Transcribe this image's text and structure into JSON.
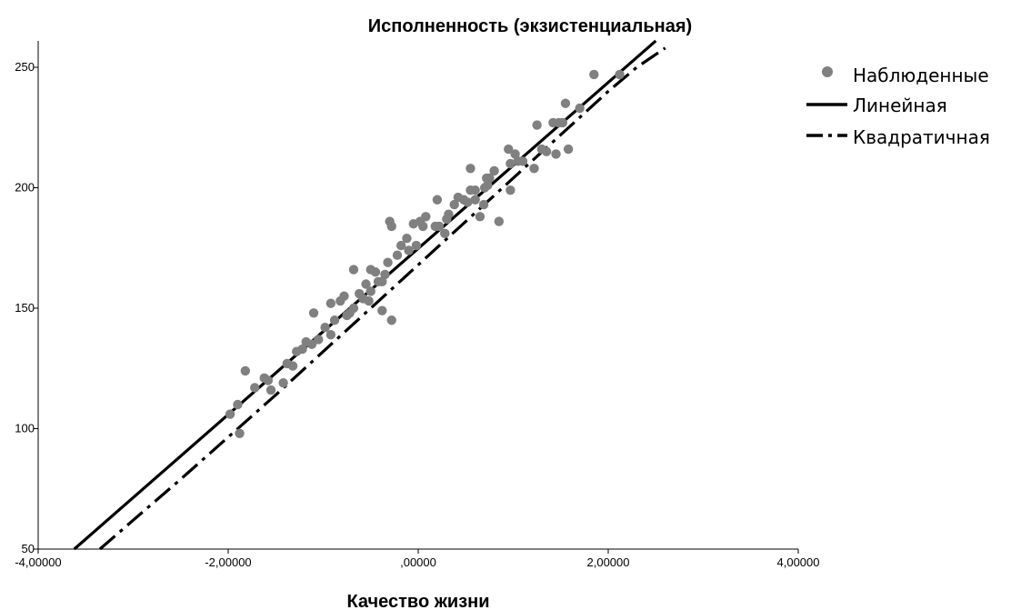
{
  "chart_data": {
    "type": "scatter",
    "title": "Исполненность (экзистенциальная)",
    "xlabel": "Качество жизни",
    "ylabel": "",
    "xlim": [
      -4,
      4
    ],
    "ylim": [
      50,
      260
    ],
    "x_ticks": [
      {
        "value": -4,
        "label": "-4,00000"
      },
      {
        "value": -2,
        "label": "-2,00000"
      },
      {
        "value": 0,
        "label": ",00000"
      },
      {
        "value": 2,
        "label": "2,00000"
      },
      {
        "value": 4,
        "label": "4,00000"
      }
    ],
    "y_ticks": [
      {
        "value": 50,
        "label": "50"
      },
      {
        "value": 100,
        "label": "100"
      },
      {
        "value": 150,
        "label": "150"
      },
      {
        "value": 200,
        "label": "200"
      },
      {
        "value": 250,
        "label": "250"
      }
    ],
    "grid": false,
    "legend": {
      "placement": "top-right",
      "entries": [
        {
          "label": "Наблюденные",
          "style": "dot"
        },
        {
          "label": "Линейная",
          "style": "solid"
        },
        {
          "label": "Квадратичная",
          "style": "dash-dot"
        }
      ]
    },
    "colors": {
      "points": "#808080",
      "lines": "#000000"
    },
    "series": [
      {
        "name": "Наблюденные",
        "kind": "points",
        "points": [
          [
            2.12,
            247
          ],
          [
            1.85,
            247
          ],
          [
            1.55,
            235
          ],
          [
            1.48,
            227
          ],
          [
            1.42,
            227
          ],
          [
            1.52,
            227
          ],
          [
            1.7,
            233
          ],
          [
            1.58,
            216
          ],
          [
            1.45,
            214
          ],
          [
            1.35,
            215
          ],
          [
            1.3,
            216
          ],
          [
            1.25,
            226
          ],
          [
            1.1,
            211
          ],
          [
            1.05,
            211
          ],
          [
            1.02,
            214
          ],
          [
            0.97,
            210
          ],
          [
            0.95,
            216
          ],
          [
            0.97,
            199
          ],
          [
            0.8,
            207
          ],
          [
            0.75,
            204
          ],
          [
            0.73,
            201
          ],
          [
            0.7,
            200
          ],
          [
            0.72,
            204
          ],
          [
            0.69,
            193
          ],
          [
            0.65,
            188
          ],
          [
            0.6,
            199
          ],
          [
            0.6,
            195
          ],
          [
            0.55,
            199
          ],
          [
            0.52,
            194
          ],
          [
            0.55,
            208
          ],
          [
            0.48,
            195
          ],
          [
            0.42,
            196
          ],
          [
            0.38,
            193
          ],
          [
            0.32,
            189
          ],
          [
            0.3,
            187
          ],
          [
            0.28,
            181
          ],
          [
            0.2,
            195
          ],
          [
            0.18,
            184
          ],
          [
            0.08,
            188
          ],
          [
            0.05,
            184
          ],
          [
            0.02,
            186
          ],
          [
            -0.02,
            176
          ],
          [
            -0.05,
            185
          ],
          [
            -0.12,
            179
          ],
          [
            -0.18,
            176
          ],
          [
            -0.22,
            172
          ],
          [
            -0.28,
            184
          ],
          [
            -0.3,
            186
          ],
          [
            -0.32,
            169
          ],
          [
            -0.35,
            164
          ],
          [
            -0.38,
            161
          ],
          [
            -0.42,
            161
          ],
          [
            -0.45,
            165
          ],
          [
            -0.5,
            166
          ],
          [
            -0.55,
            160
          ],
          [
            -0.5,
            157
          ],
          [
            -0.52,
            153
          ],
          [
            -0.58,
            154
          ],
          [
            -0.62,
            156
          ],
          [
            -0.68,
            150
          ],
          [
            -0.72,
            148
          ],
          [
            -0.75,
            147
          ],
          [
            -0.78,
            155
          ],
          [
            -0.82,
            153
          ],
          [
            -0.88,
            145
          ],
          [
            -0.92,
            152
          ],
          [
            -0.92,
            139
          ],
          [
            -0.98,
            142
          ],
          [
            -1.05,
            137
          ],
          [
            -1.12,
            135
          ],
          [
            -1.18,
            136
          ],
          [
            -1.22,
            133
          ],
          [
            -1.28,
            132
          ],
          [
            -1.32,
            126
          ],
          [
            -1.38,
            127
          ],
          [
            -1.42,
            119
          ],
          [
            -1.55,
            116
          ],
          [
            -1.58,
            120
          ],
          [
            -1.62,
            121
          ],
          [
            -1.72,
            117
          ],
          [
            -1.82,
            124
          ],
          [
            -1.9,
            110
          ],
          [
            -1.98,
            106
          ],
          [
            -1.88,
            98
          ],
          [
            -0.28,
            145
          ],
          [
            -0.38,
            149
          ],
          [
            -0.68,
            166
          ],
          [
            -0.1,
            174
          ],
          [
            1.22,
            208
          ],
          [
            0.85,
            186
          ],
          [
            0.22,
            184
          ],
          [
            -1.1,
            148
          ]
        ]
      },
      {
        "name": "Линейная",
        "kind": "line",
        "style": "solid",
        "points": [
          [
            -3.62,
            50
          ],
          [
            2.5,
            261
          ]
        ]
      },
      {
        "name": "Квадратичная",
        "kind": "line",
        "style": "dash-dot",
        "points": [
          [
            -3.35,
            50
          ],
          [
            -3.0,
            62
          ],
          [
            -2.5,
            79
          ],
          [
            -2.0,
            96.5
          ],
          [
            -1.5,
            114
          ],
          [
            -1.0,
            132
          ],
          [
            -0.5,
            150
          ],
          [
            0.0,
            168
          ],
          [
            0.5,
            186
          ],
          [
            1.0,
            204
          ],
          [
            1.5,
            222
          ],
          [
            2.0,
            240
          ],
          [
            2.3,
            250
          ],
          [
            2.6,
            258
          ]
        ]
      }
    ]
  }
}
